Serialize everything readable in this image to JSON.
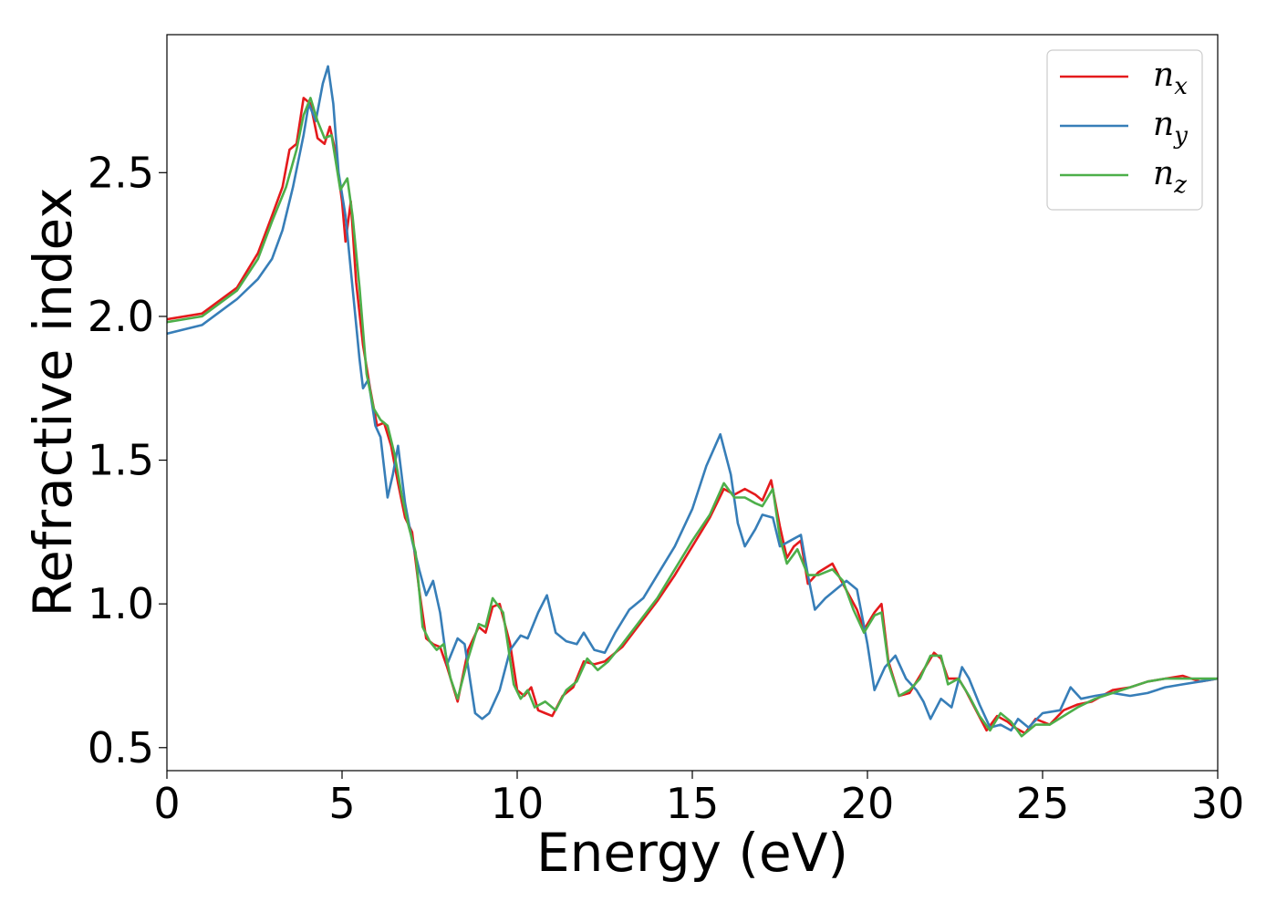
{
  "chart_data": {
    "type": "line",
    "xlabel": "Energy (eV)",
    "ylabel": "Refractive index",
    "xlim": [
      0,
      30
    ],
    "ylim": [
      0.42,
      2.98
    ],
    "x_ticks": [
      "0",
      "5",
      "10",
      "15",
      "20",
      "25",
      "30"
    ],
    "y_ticks": [
      "0.5",
      "1.0",
      "1.5",
      "2.0",
      "2.5"
    ],
    "grid": false,
    "legend_position": "top-right",
    "series": [
      {
        "name": "n_x",
        "legend_base": "n",
        "legend_sub": "x",
        "color": "#e41a1c",
        "points": [
          [
            0,
            1.99
          ],
          [
            1,
            2.01
          ],
          [
            2,
            2.1
          ],
          [
            2.6,
            2.22
          ],
          [
            3,
            2.35
          ],
          [
            3.3,
            2.45
          ],
          [
            3.5,
            2.58
          ],
          [
            3.7,
            2.6
          ],
          [
            3.9,
            2.76
          ],
          [
            4.1,
            2.74
          ],
          [
            4.3,
            2.62
          ],
          [
            4.5,
            2.6
          ],
          [
            4.65,
            2.66
          ],
          [
            4.8,
            2.58
          ],
          [
            5.0,
            2.4
          ],
          [
            5.1,
            2.26
          ],
          [
            5.25,
            2.4
          ],
          [
            5.4,
            2.12
          ],
          [
            5.6,
            1.9
          ],
          [
            5.8,
            1.75
          ],
          [
            6.0,
            1.62
          ],
          [
            6.2,
            1.63
          ],
          [
            6.4,
            1.55
          ],
          [
            6.6,
            1.42
          ],
          [
            6.8,
            1.3
          ],
          [
            7.0,
            1.25
          ],
          [
            7.2,
            1.05
          ],
          [
            7.4,
            0.88
          ],
          [
            7.6,
            0.86
          ],
          [
            7.8,
            0.85
          ],
          [
            8.0,
            0.78
          ],
          [
            8.3,
            0.66
          ],
          [
            8.6,
            0.84
          ],
          [
            8.9,
            0.92
          ],
          [
            9.1,
            0.9
          ],
          [
            9.3,
            0.99
          ],
          [
            9.5,
            1.0
          ],
          [
            9.8,
            0.86
          ],
          [
            10.0,
            0.7
          ],
          [
            10.2,
            0.68
          ],
          [
            10.4,
            0.71
          ],
          [
            10.6,
            0.63
          ],
          [
            10.8,
            0.62
          ],
          [
            11.0,
            0.61
          ],
          [
            11.3,
            0.68
          ],
          [
            11.6,
            0.71
          ],
          [
            11.9,
            0.8
          ],
          [
            12.2,
            0.79
          ],
          [
            12.5,
            0.8
          ],
          [
            13.0,
            0.85
          ],
          [
            13.5,
            0.93
          ],
          [
            14.0,
            1.01
          ],
          [
            14.5,
            1.1
          ],
          [
            15.0,
            1.2
          ],
          [
            15.5,
            1.3
          ],
          [
            15.9,
            1.4
          ],
          [
            16.2,
            1.38
          ],
          [
            16.5,
            1.4
          ],
          [
            16.8,
            1.38
          ],
          [
            17.0,
            1.36
          ],
          [
            17.25,
            1.43
          ],
          [
            17.5,
            1.27
          ],
          [
            17.7,
            1.16
          ],
          [
            17.9,
            1.2
          ],
          [
            18.1,
            1.22
          ],
          [
            18.3,
            1.07
          ],
          [
            18.6,
            1.11
          ],
          [
            19.0,
            1.14
          ],
          [
            19.3,
            1.07
          ],
          [
            19.7,
            0.98
          ],
          [
            19.9,
            0.91
          ],
          [
            20.2,
            0.97
          ],
          [
            20.4,
            1.0
          ],
          [
            20.6,
            0.8
          ],
          [
            20.9,
            0.68
          ],
          [
            21.2,
            0.69
          ],
          [
            21.6,
            0.77
          ],
          [
            21.9,
            0.83
          ],
          [
            22.1,
            0.81
          ],
          [
            22.3,
            0.74
          ],
          [
            22.6,
            0.74
          ],
          [
            22.8,
            0.7
          ],
          [
            23.1,
            0.63
          ],
          [
            23.4,
            0.56
          ],
          [
            23.7,
            0.61
          ],
          [
            24.0,
            0.59
          ],
          [
            24.2,
            0.57
          ],
          [
            24.5,
            0.55
          ],
          [
            24.8,
            0.6
          ],
          [
            25.2,
            0.58
          ],
          [
            25.6,
            0.63
          ],
          [
            26.0,
            0.65
          ],
          [
            26.4,
            0.66
          ],
          [
            27.0,
            0.7
          ],
          [
            27.5,
            0.71
          ],
          [
            28.0,
            0.73
          ],
          [
            28.5,
            0.74
          ],
          [
            29.0,
            0.75
          ],
          [
            29.5,
            0.73
          ],
          [
            30.0,
            0.74
          ]
        ]
      },
      {
        "name": "n_y",
        "legend_base": "n",
        "legend_sub": "y",
        "color": "#377eb8",
        "points": [
          [
            0,
            1.94
          ],
          [
            1,
            1.97
          ],
          [
            2,
            2.06
          ],
          [
            2.6,
            2.13
          ],
          [
            3,
            2.2
          ],
          [
            3.3,
            2.3
          ],
          [
            3.6,
            2.45
          ],
          [
            3.9,
            2.63
          ],
          [
            4.05,
            2.74
          ],
          [
            4.25,
            2.68
          ],
          [
            4.45,
            2.81
          ],
          [
            4.6,
            2.87
          ],
          [
            4.75,
            2.74
          ],
          [
            4.9,
            2.5
          ],
          [
            5.1,
            2.35
          ],
          [
            5.3,
            2.1
          ],
          [
            5.5,
            1.85
          ],
          [
            5.6,
            1.75
          ],
          [
            5.75,
            1.78
          ],
          [
            5.95,
            1.62
          ],
          [
            6.1,
            1.58
          ],
          [
            6.3,
            1.37
          ],
          [
            6.45,
            1.45
          ],
          [
            6.6,
            1.55
          ],
          [
            6.8,
            1.35
          ],
          [
            7.0,
            1.22
          ],
          [
            7.2,
            1.12
          ],
          [
            7.4,
            1.03
          ],
          [
            7.6,
            1.08
          ],
          [
            7.8,
            0.97
          ],
          [
            8.0,
            0.79
          ],
          [
            8.3,
            0.88
          ],
          [
            8.5,
            0.86
          ],
          [
            8.8,
            0.62
          ],
          [
            9.0,
            0.6
          ],
          [
            9.2,
            0.62
          ],
          [
            9.5,
            0.7
          ],
          [
            9.8,
            0.84
          ],
          [
            10.1,
            0.89
          ],
          [
            10.3,
            0.88
          ],
          [
            10.6,
            0.97
          ],
          [
            10.85,
            1.03
          ],
          [
            11.1,
            0.9
          ],
          [
            11.4,
            0.87
          ],
          [
            11.7,
            0.86
          ],
          [
            11.9,
            0.9
          ],
          [
            12.2,
            0.84
          ],
          [
            12.5,
            0.83
          ],
          [
            12.8,
            0.9
          ],
          [
            13.2,
            0.98
          ],
          [
            13.6,
            1.02
          ],
          [
            14.0,
            1.1
          ],
          [
            14.5,
            1.2
          ],
          [
            15.0,
            1.33
          ],
          [
            15.4,
            1.48
          ],
          [
            15.8,
            1.59
          ],
          [
            16.1,
            1.45
          ],
          [
            16.3,
            1.28
          ],
          [
            16.5,
            1.2
          ],
          [
            16.8,
            1.26
          ],
          [
            17.0,
            1.31
          ],
          [
            17.3,
            1.3
          ],
          [
            17.5,
            1.2
          ],
          [
            17.8,
            1.22
          ],
          [
            18.1,
            1.24
          ],
          [
            18.3,
            1.1
          ],
          [
            18.5,
            0.98
          ],
          [
            18.8,
            1.02
          ],
          [
            19.1,
            1.05
          ],
          [
            19.4,
            1.08
          ],
          [
            19.7,
            1.05
          ],
          [
            20.0,
            0.86
          ],
          [
            20.2,
            0.7
          ],
          [
            20.5,
            0.78
          ],
          [
            20.8,
            0.82
          ],
          [
            21.1,
            0.74
          ],
          [
            21.4,
            0.7
          ],
          [
            21.6,
            0.66
          ],
          [
            21.8,
            0.6
          ],
          [
            22.1,
            0.67
          ],
          [
            22.4,
            0.64
          ],
          [
            22.7,
            0.78
          ],
          [
            22.9,
            0.74
          ],
          [
            23.2,
            0.65
          ],
          [
            23.5,
            0.57
          ],
          [
            23.8,
            0.58
          ],
          [
            24.1,
            0.56
          ],
          [
            24.3,
            0.6
          ],
          [
            24.6,
            0.57
          ],
          [
            25.0,
            0.62
          ],
          [
            25.5,
            0.63
          ],
          [
            25.8,
            0.71
          ],
          [
            26.1,
            0.67
          ],
          [
            26.5,
            0.68
          ],
          [
            27.0,
            0.69
          ],
          [
            27.5,
            0.68
          ],
          [
            28.0,
            0.69
          ],
          [
            28.5,
            0.71
          ],
          [
            29.0,
            0.72
          ],
          [
            29.5,
            0.73
          ],
          [
            30.0,
            0.74
          ]
        ]
      },
      {
        "name": "n_z",
        "legend_base": "n",
        "legend_sub": "z",
        "color": "#4daf4a",
        "points": [
          [
            0,
            1.98
          ],
          [
            1,
            2.0
          ],
          [
            2,
            2.09
          ],
          [
            2.6,
            2.2
          ],
          [
            3,
            2.33
          ],
          [
            3.4,
            2.45
          ],
          [
            3.7,
            2.58
          ],
          [
            3.9,
            2.7
          ],
          [
            4.1,
            2.76
          ],
          [
            4.3,
            2.68
          ],
          [
            4.5,
            2.62
          ],
          [
            4.7,
            2.63
          ],
          [
            4.95,
            2.44
          ],
          [
            5.15,
            2.48
          ],
          [
            5.3,
            2.35
          ],
          [
            5.5,
            2.1
          ],
          [
            5.7,
            1.8
          ],
          [
            5.9,
            1.68
          ],
          [
            6.1,
            1.64
          ],
          [
            6.3,
            1.62
          ],
          [
            6.5,
            1.52
          ],
          [
            6.7,
            1.38
          ],
          [
            6.9,
            1.27
          ],
          [
            7.1,
            1.18
          ],
          [
            7.3,
            0.92
          ],
          [
            7.5,
            0.87
          ],
          [
            7.7,
            0.84
          ],
          [
            7.9,
            0.86
          ],
          [
            8.1,
            0.74
          ],
          [
            8.3,
            0.67
          ],
          [
            8.6,
            0.81
          ],
          [
            8.9,
            0.93
          ],
          [
            9.1,
            0.92
          ],
          [
            9.3,
            1.02
          ],
          [
            9.6,
            0.97
          ],
          [
            9.9,
            0.72
          ],
          [
            10.1,
            0.67
          ],
          [
            10.3,
            0.7
          ],
          [
            10.5,
            0.64
          ],
          [
            10.8,
            0.66
          ],
          [
            11.1,
            0.63
          ],
          [
            11.4,
            0.7
          ],
          [
            11.7,
            0.73
          ],
          [
            12.0,
            0.81
          ],
          [
            12.3,
            0.77
          ],
          [
            12.6,
            0.8
          ],
          [
            13.0,
            0.86
          ],
          [
            13.5,
            0.94
          ],
          [
            14.0,
            1.02
          ],
          [
            14.5,
            1.12
          ],
          [
            15.0,
            1.22
          ],
          [
            15.5,
            1.31
          ],
          [
            15.9,
            1.42
          ],
          [
            16.2,
            1.37
          ],
          [
            16.5,
            1.37
          ],
          [
            16.8,
            1.35
          ],
          [
            17.0,
            1.34
          ],
          [
            17.3,
            1.4
          ],
          [
            17.5,
            1.23
          ],
          [
            17.7,
            1.14
          ],
          [
            18.0,
            1.19
          ],
          [
            18.3,
            1.1
          ],
          [
            18.6,
            1.1
          ],
          [
            19.0,
            1.12
          ],
          [
            19.3,
            1.08
          ],
          [
            19.6,
            0.98
          ],
          [
            19.9,
            0.9
          ],
          [
            20.2,
            0.96
          ],
          [
            20.4,
            0.97
          ],
          [
            20.6,
            0.79
          ],
          [
            20.9,
            0.68
          ],
          [
            21.2,
            0.7
          ],
          [
            21.5,
            0.74
          ],
          [
            21.8,
            0.82
          ],
          [
            22.1,
            0.82
          ],
          [
            22.3,
            0.72
          ],
          [
            22.6,
            0.74
          ],
          [
            22.9,
            0.68
          ],
          [
            23.2,
            0.61
          ],
          [
            23.5,
            0.56
          ],
          [
            23.8,
            0.62
          ],
          [
            24.1,
            0.59
          ],
          [
            24.4,
            0.54
          ],
          [
            24.8,
            0.58
          ],
          [
            25.2,
            0.58
          ],
          [
            25.6,
            0.61
          ],
          [
            26.0,
            0.64
          ],
          [
            26.5,
            0.67
          ],
          [
            27.0,
            0.69
          ],
          [
            27.5,
            0.71
          ],
          [
            28.0,
            0.73
          ],
          [
            28.5,
            0.74
          ],
          [
            29.0,
            0.74
          ],
          [
            29.5,
            0.74
          ],
          [
            30.0,
            0.74
          ]
        ]
      }
    ]
  }
}
